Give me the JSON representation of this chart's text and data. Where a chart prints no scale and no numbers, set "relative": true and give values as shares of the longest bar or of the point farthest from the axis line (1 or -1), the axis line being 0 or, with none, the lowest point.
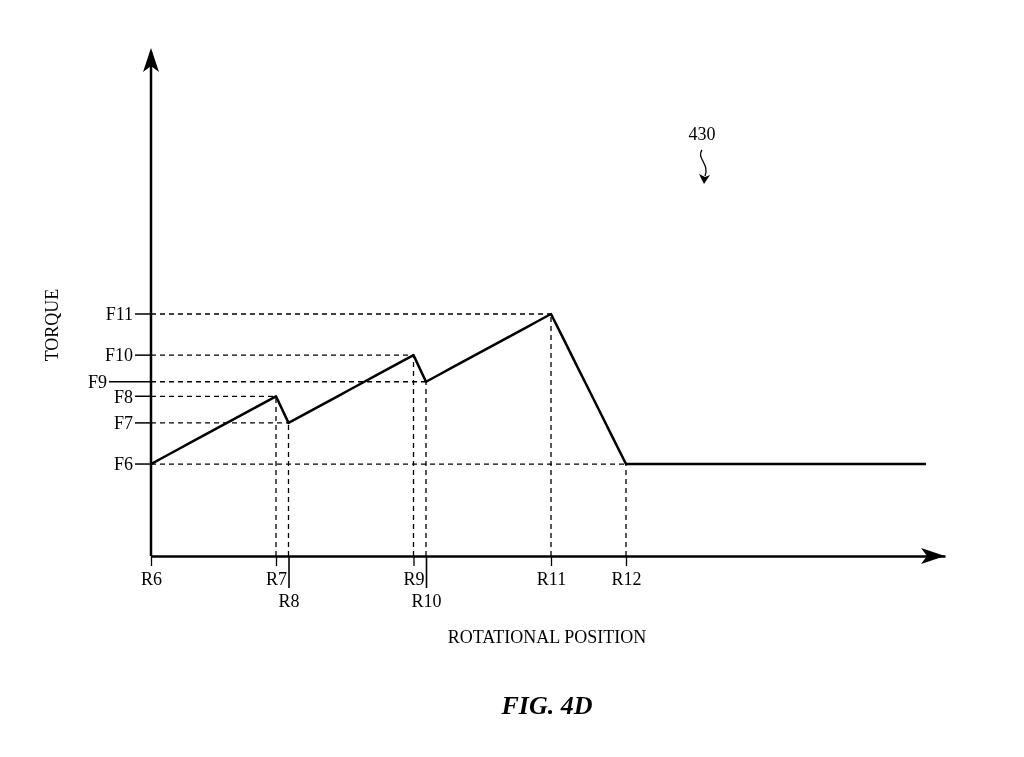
{
  "chart_data": {
    "type": "line",
    "title": "FIG. 4D",
    "xlabel": "ROTATIONAL POSITION",
    "ylabel": "TORQUE",
    "annotations": [
      "430"
    ],
    "relative": true,
    "categories": [
      "R6",
      null,
      null,
      null,
      null,
      null,
      null,
      null,
      null,
      null,
      "R7",
      "R8",
      null,
      null,
      null,
      null,
      null,
      null,
      null,
      null,
      null,
      "R9",
      "R10",
      null,
      null,
      null,
      null,
      null,
      null,
      null,
      null,
      null,
      "R11",
      null,
      null,
      null,
      null,
      null,
      "R12",
      null,
      null,
      null,
      null,
      null,
      null,
      null,
      null,
      null,
      null,
      null,
      null,
      null,
      null,
      null,
      null,
      null,
      null,
      null,
      null,
      null,
      null,
      null,
      null
    ],
    "series": [
      {
        "color": "#000000",
        "values": [
          0.38,
          0.408,
          0.436,
          0.464,
          0.492,
          0.52,
          0.548,
          0.576,
          0.604,
          0.632,
          0.66,
          0.55,
          0.578,
          0.606,
          0.634,
          0.662,
          0.69,
          0.718,
          0.746,
          0.774,
          0.802,
          0.83,
          0.72,
          0.748,
          0.776,
          0.804,
          0.832,
          0.86,
          0.888,
          0.916,
          0.944,
          0.972,
          1,
          0.897,
          0.793,
          0.69,
          0.587,
          0.483,
          0.38,
          0.38,
          0.38,
          0.38,
          0.38,
          0.38,
          0.38,
          0.38,
          0.38,
          0.38,
          0.38,
          0.38,
          0.38,
          0.38,
          0.38,
          0.38,
          0.38,
          0.38,
          0.38,
          0.38,
          0.38,
          0.38,
          0.38,
          0.38,
          0.38
        ]
      }
    ],
    "ref_lines": [
      {
        "axis": "y",
        "value": 0.38,
        "label": "F6",
        "line_style": "dashed"
      },
      {
        "axis": "y",
        "value": 0.55,
        "label": "F7",
        "line_style": "dashed"
      },
      {
        "axis": "y",
        "value": 0.66,
        "label": "F8",
        "line_style": "dashed"
      },
      {
        "axis": "y",
        "value": 0.72,
        "label": "F9",
        "line_style": "dashed"
      },
      {
        "axis": "y",
        "value": 0.83,
        "label": "F10",
        "line_style": "dashed"
      },
      {
        "axis": "y",
        "value": 1,
        "label": "F11",
        "line_style": "dashed"
      },
      {
        "axis": "x",
        "value": "R7",
        "line_style": "dashed"
      },
      {
        "axis": "x",
        "value": "R8",
        "line_style": "dashed"
      },
      {
        "axis": "x",
        "value": "R9",
        "line_style": "dashed"
      },
      {
        "axis": "x",
        "value": "R10",
        "line_style": "dashed"
      },
      {
        "axis": "x",
        "value": "R11",
        "line_style": "dashed"
      },
      {
        "axis": "x",
        "value": "R12",
        "line_style": "dashed"
      }
    ]
  }
}
